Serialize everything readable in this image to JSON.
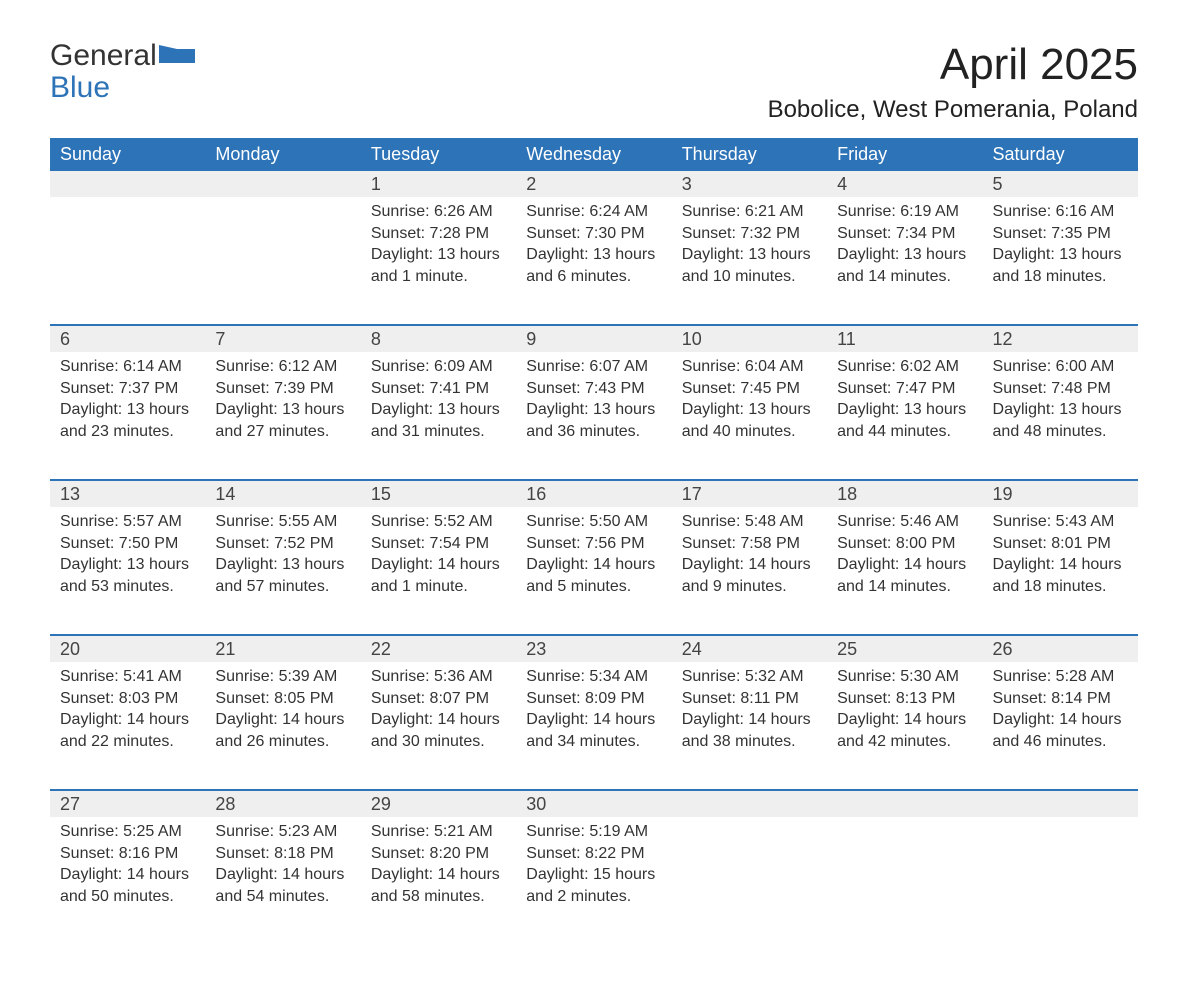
{
  "brand": {
    "main": "General",
    "sub": "Blue"
  },
  "title": "April 2025",
  "location": "Bobolice, West Pomerania, Poland",
  "colors": {
    "header_bg": "#2d73b7",
    "header_fg": "#ffffff",
    "daynum_bg": "#efefef",
    "rule": "#2d73b7",
    "text": "#333333",
    "page_bg": "#ffffff"
  },
  "typography": {
    "month_title_fontsize": 44,
    "location_fontsize": 24,
    "header_fontsize": 18,
    "daynum_fontsize": 18,
    "body_fontsize": 16
  },
  "day_headers": [
    "Sunday",
    "Monday",
    "Tuesday",
    "Wednesday",
    "Thursday",
    "Friday",
    "Saturday"
  ],
  "weeks": [
    [
      null,
      null,
      {
        "n": "1",
        "sunrise": "Sunrise: 6:26 AM",
        "sunset": "Sunset: 7:28 PM",
        "daylight": "Daylight: 13 hours and 1 minute."
      },
      {
        "n": "2",
        "sunrise": "Sunrise: 6:24 AM",
        "sunset": "Sunset: 7:30 PM",
        "daylight": "Daylight: 13 hours and 6 minutes."
      },
      {
        "n": "3",
        "sunrise": "Sunrise: 6:21 AM",
        "sunset": "Sunset: 7:32 PM",
        "daylight": "Daylight: 13 hours and 10 minutes."
      },
      {
        "n": "4",
        "sunrise": "Sunrise: 6:19 AM",
        "sunset": "Sunset: 7:34 PM",
        "daylight": "Daylight: 13 hours and 14 minutes."
      },
      {
        "n": "5",
        "sunrise": "Sunrise: 6:16 AM",
        "sunset": "Sunset: 7:35 PM",
        "daylight": "Daylight: 13 hours and 18 minutes."
      }
    ],
    [
      {
        "n": "6",
        "sunrise": "Sunrise: 6:14 AM",
        "sunset": "Sunset: 7:37 PM",
        "daylight": "Daylight: 13 hours and 23 minutes."
      },
      {
        "n": "7",
        "sunrise": "Sunrise: 6:12 AM",
        "sunset": "Sunset: 7:39 PM",
        "daylight": "Daylight: 13 hours and 27 minutes."
      },
      {
        "n": "8",
        "sunrise": "Sunrise: 6:09 AM",
        "sunset": "Sunset: 7:41 PM",
        "daylight": "Daylight: 13 hours and 31 minutes."
      },
      {
        "n": "9",
        "sunrise": "Sunrise: 6:07 AM",
        "sunset": "Sunset: 7:43 PM",
        "daylight": "Daylight: 13 hours and 36 minutes."
      },
      {
        "n": "10",
        "sunrise": "Sunrise: 6:04 AM",
        "sunset": "Sunset: 7:45 PM",
        "daylight": "Daylight: 13 hours and 40 minutes."
      },
      {
        "n": "11",
        "sunrise": "Sunrise: 6:02 AM",
        "sunset": "Sunset: 7:47 PM",
        "daylight": "Daylight: 13 hours and 44 minutes."
      },
      {
        "n": "12",
        "sunrise": "Sunrise: 6:00 AM",
        "sunset": "Sunset: 7:48 PM",
        "daylight": "Daylight: 13 hours and 48 minutes."
      }
    ],
    [
      {
        "n": "13",
        "sunrise": "Sunrise: 5:57 AM",
        "sunset": "Sunset: 7:50 PM",
        "daylight": "Daylight: 13 hours and 53 minutes."
      },
      {
        "n": "14",
        "sunrise": "Sunrise: 5:55 AM",
        "sunset": "Sunset: 7:52 PM",
        "daylight": "Daylight: 13 hours and 57 minutes."
      },
      {
        "n": "15",
        "sunrise": "Sunrise: 5:52 AM",
        "sunset": "Sunset: 7:54 PM",
        "daylight": "Daylight: 14 hours and 1 minute."
      },
      {
        "n": "16",
        "sunrise": "Sunrise: 5:50 AM",
        "sunset": "Sunset: 7:56 PM",
        "daylight": "Daylight: 14 hours and 5 minutes."
      },
      {
        "n": "17",
        "sunrise": "Sunrise: 5:48 AM",
        "sunset": "Sunset: 7:58 PM",
        "daylight": "Daylight: 14 hours and 9 minutes."
      },
      {
        "n": "18",
        "sunrise": "Sunrise: 5:46 AM",
        "sunset": "Sunset: 8:00 PM",
        "daylight": "Daylight: 14 hours and 14 minutes."
      },
      {
        "n": "19",
        "sunrise": "Sunrise: 5:43 AM",
        "sunset": "Sunset: 8:01 PM",
        "daylight": "Daylight: 14 hours and 18 minutes."
      }
    ],
    [
      {
        "n": "20",
        "sunrise": "Sunrise: 5:41 AM",
        "sunset": "Sunset: 8:03 PM",
        "daylight": "Daylight: 14 hours and 22 minutes."
      },
      {
        "n": "21",
        "sunrise": "Sunrise: 5:39 AM",
        "sunset": "Sunset: 8:05 PM",
        "daylight": "Daylight: 14 hours and 26 minutes."
      },
      {
        "n": "22",
        "sunrise": "Sunrise: 5:36 AM",
        "sunset": "Sunset: 8:07 PM",
        "daylight": "Daylight: 14 hours and 30 minutes."
      },
      {
        "n": "23",
        "sunrise": "Sunrise: 5:34 AM",
        "sunset": "Sunset: 8:09 PM",
        "daylight": "Daylight: 14 hours and 34 minutes."
      },
      {
        "n": "24",
        "sunrise": "Sunrise: 5:32 AM",
        "sunset": "Sunset: 8:11 PM",
        "daylight": "Daylight: 14 hours and 38 minutes."
      },
      {
        "n": "25",
        "sunrise": "Sunrise: 5:30 AM",
        "sunset": "Sunset: 8:13 PM",
        "daylight": "Daylight: 14 hours and 42 minutes."
      },
      {
        "n": "26",
        "sunrise": "Sunrise: 5:28 AM",
        "sunset": "Sunset: 8:14 PM",
        "daylight": "Daylight: 14 hours and 46 minutes."
      }
    ],
    [
      {
        "n": "27",
        "sunrise": "Sunrise: 5:25 AM",
        "sunset": "Sunset: 8:16 PM",
        "daylight": "Daylight: 14 hours and 50 minutes."
      },
      {
        "n": "28",
        "sunrise": "Sunrise: 5:23 AM",
        "sunset": "Sunset: 8:18 PM",
        "daylight": "Daylight: 14 hours and 54 minutes."
      },
      {
        "n": "29",
        "sunrise": "Sunrise: 5:21 AM",
        "sunset": "Sunset: 8:20 PM",
        "daylight": "Daylight: 14 hours and 58 minutes."
      },
      {
        "n": "30",
        "sunrise": "Sunrise: 5:19 AM",
        "sunset": "Sunset: 8:22 PM",
        "daylight": "Daylight: 15 hours and 2 minutes."
      },
      null,
      null,
      null
    ]
  ]
}
